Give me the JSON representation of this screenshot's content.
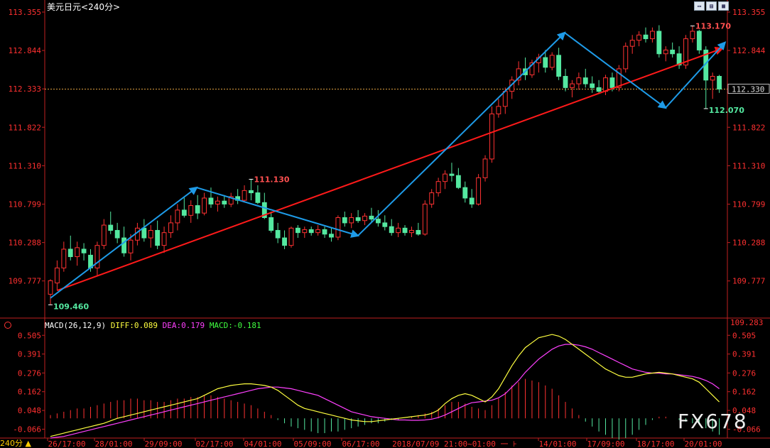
{
  "header": {
    "title": "美元日元",
    "timeframe": "<240分>"
  },
  "toolbar": {
    "icons": [
      "chart-type-icon",
      "indicator-icon",
      "expand-icon"
    ],
    "labels": [
      "▭",
      "▤",
      "▦"
    ]
  },
  "period_button": "240分 ▲",
  "macd_legend": {
    "name": "MACD(26,12,9)",
    "diff": "DIFF:0.089",
    "dea": "DEA:0.179",
    "macd": "MACD:-0.181"
  },
  "watermark": "FX678",
  "footer_center": "2018/07/09 21:00~01:00 一 ⊦",
  "colors": {
    "up": "#ff3232",
    "down": "#54e8a0",
    "trend_arrow": "#1e9be8",
    "trend_line": "#ff1a1a",
    "diff": "#ffff40",
    "dea": "#ff40ff",
    "axis": "#c02020",
    "label_axis": "#ff3030"
  },
  "chart_data": {
    "type": "candlestick",
    "price_axis": {
      "ticks": [
        "113.355",
        "112.844",
        "112.333",
        "111.822",
        "111.310",
        "110.799",
        "110.288",
        "109.777"
      ],
      "min": 109.283,
      "max": 113.355,
      "bottom_label": "109.283",
      "current": "112.330"
    },
    "macd_axis": {
      "ticks": [
        "0.505",
        "0.391",
        "0.276",
        "0.162",
        "0.048",
        "-0.066"
      ],
      "min": -0.12,
      "max": 0.545
    },
    "x_labels": [
      "26/17:00",
      "28/01:00",
      "29/09:00",
      "02/17:00",
      "04/01:00",
      "05/09:00",
      "06/17:00",
      "14/01:00",
      "17/09:00",
      "18/17:00",
      "20/01:00"
    ],
    "annotations": [
      {
        "label": "109.460",
        "value": 109.46,
        "kind": "low"
      },
      {
        "label": "111.130",
        "value": 111.13,
        "kind": "high"
      },
      {
        "label": "113.170",
        "value": 113.17,
        "kind": "high"
      },
      {
        "label": "112.070",
        "value": 112.07,
        "kind": "low"
      }
    ],
    "candles": [
      [
        109.6,
        109.8,
        109.46,
        109.78
      ],
      [
        109.75,
        110.05,
        109.65,
        109.95
      ],
      [
        109.95,
        110.3,
        109.9,
        110.2
      ],
      [
        110.2,
        110.38,
        110.05,
        110.1
      ],
      [
        110.1,
        110.3,
        109.98,
        110.22
      ],
      [
        110.2,
        110.28,
        110.05,
        110.15
      ],
      [
        110.12,
        110.2,
        109.9,
        109.95
      ],
      [
        109.95,
        110.3,
        109.85,
        110.25
      ],
      [
        110.25,
        110.6,
        110.2,
        110.52
      ],
      [
        110.52,
        110.7,
        110.4,
        110.45
      ],
      [
        110.45,
        110.55,
        110.28,
        110.35
      ],
      [
        110.35,
        110.5,
        110.1,
        110.15
      ],
      [
        110.15,
        110.4,
        110.05,
        110.32
      ],
      [
        110.32,
        110.55,
        110.25,
        110.48
      ],
      [
        110.48,
        110.6,
        110.3,
        110.35
      ],
      [
        110.35,
        110.52,
        110.22,
        110.45
      ],
      [
        110.45,
        110.58,
        110.2,
        110.25
      ],
      [
        110.25,
        110.5,
        110.15,
        110.42
      ],
      [
        110.42,
        110.65,
        110.35,
        110.55
      ],
      [
        110.55,
        110.8,
        110.45,
        110.72
      ],
      [
        110.72,
        110.9,
        110.62,
        110.65
      ],
      [
        110.65,
        110.85,
        110.55,
        110.78
      ],
      [
        110.78,
        110.92,
        110.6,
        110.68
      ],
      [
        110.68,
        110.95,
        110.65,
        110.88
      ],
      [
        110.88,
        111.02,
        110.75,
        110.8
      ],
      [
        110.8,
        110.9,
        110.7,
        110.84
      ],
      [
        110.84,
        110.92,
        110.75,
        110.8
      ],
      [
        110.8,
        110.95,
        110.76,
        110.9
      ],
      [
        110.9,
        111.0,
        110.8,
        110.85
      ],
      [
        110.85,
        111.05,
        110.82,
        110.98
      ],
      [
        110.98,
        111.13,
        110.85,
        110.95
      ],
      [
        110.95,
        111.05,
        110.8,
        110.82
      ],
      [
        110.82,
        110.95,
        110.6,
        110.62
      ],
      [
        110.62,
        110.7,
        110.42,
        110.45
      ],
      [
        110.45,
        110.55,
        110.28,
        110.35
      ],
      [
        110.35,
        110.45,
        110.2,
        110.25
      ],
      [
        110.25,
        110.5,
        110.22,
        110.48
      ],
      [
        110.48,
        110.52,
        110.35,
        110.42
      ],
      [
        110.42,
        110.5,
        110.35,
        110.46
      ],
      [
        110.46,
        110.5,
        110.38,
        110.42
      ],
      [
        110.42,
        110.52,
        110.38,
        110.46
      ],
      [
        110.46,
        110.5,
        110.35,
        110.4
      ],
      [
        110.4,
        110.48,
        110.3,
        110.36
      ],
      [
        110.36,
        110.65,
        110.32,
        110.62
      ],
      [
        110.62,
        110.7,
        110.5,
        110.55
      ],
      [
        110.55,
        110.68,
        110.48,
        110.62
      ],
      [
        110.62,
        110.72,
        110.55,
        110.58
      ],
      [
        110.58,
        110.68,
        110.52,
        110.64
      ],
      [
        110.64,
        110.75,
        110.55,
        110.6
      ],
      [
        110.6,
        110.72,
        110.5,
        110.55
      ],
      [
        110.55,
        110.65,
        110.45,
        110.5
      ],
      [
        110.5,
        110.6,
        110.38,
        110.42
      ],
      [
        110.42,
        110.55,
        110.36,
        110.48
      ],
      [
        110.48,
        110.52,
        110.38,
        110.42
      ],
      [
        110.42,
        110.5,
        110.36,
        110.45
      ],
      [
        110.45,
        110.55,
        110.38,
        110.4
      ],
      [
        110.4,
        110.85,
        110.38,
        110.8
      ],
      [
        110.8,
        111.0,
        110.75,
        110.95
      ],
      [
        110.95,
        111.15,
        110.9,
        111.1
      ],
      [
        111.1,
        111.25,
        111.0,
        111.2
      ],
      [
        111.2,
        111.35,
        111.1,
        111.18
      ],
      [
        111.18,
        111.28,
        111.0,
        111.02
      ],
      [
        111.02,
        111.1,
        110.82,
        110.88
      ],
      [
        110.88,
        111.0,
        110.75,
        110.8
      ],
      [
        110.8,
        111.2,
        110.78,
        111.15
      ],
      [
        111.15,
        111.45,
        111.1,
        111.4
      ],
      [
        111.4,
        112.1,
        111.35,
        112.0
      ],
      [
        112.0,
        112.2,
        111.95,
        112.1
      ],
      [
        112.1,
        112.35,
        112.0,
        112.3
      ],
      [
        112.3,
        112.5,
        112.2,
        112.45
      ],
      [
        112.45,
        112.7,
        112.38,
        112.6
      ],
      [
        112.6,
        112.75,
        112.45,
        112.52
      ],
      [
        112.52,
        112.72,
        112.48,
        112.68
      ],
      [
        112.68,
        112.8,
        112.55,
        112.75
      ],
      [
        112.75,
        112.85,
        112.55,
        112.62
      ],
      [
        112.62,
        112.82,
        112.58,
        112.78
      ],
      [
        112.78,
        112.88,
        112.45,
        112.5
      ],
      [
        112.5,
        112.6,
        112.3,
        112.35
      ],
      [
        112.35,
        112.45,
        112.22,
        112.4
      ],
      [
        112.4,
        112.55,
        112.32,
        112.48
      ],
      [
        112.48,
        112.6,
        112.35,
        112.4
      ],
      [
        112.4,
        112.5,
        112.28,
        112.35
      ],
      [
        112.35,
        112.45,
        112.28,
        112.3
      ],
      [
        112.3,
        112.52,
        112.25,
        112.48
      ],
      [
        112.48,
        112.55,
        112.3,
        112.35
      ],
      [
        112.35,
        112.65,
        112.3,
        112.6
      ],
      [
        112.6,
        112.95,
        112.55,
        112.9
      ],
      [
        112.9,
        113.05,
        112.8,
        112.98
      ],
      [
        112.98,
        113.1,
        112.9,
        113.05
      ],
      [
        113.05,
        113.15,
        112.95,
        113.0
      ],
      [
        113.0,
        113.15,
        112.95,
        113.1
      ],
      [
        113.1,
        113.18,
        112.75,
        112.8
      ],
      [
        112.8,
        112.9,
        112.7,
        112.85
      ],
      [
        112.85,
        112.95,
        112.75,
        112.8
      ],
      [
        112.8,
        112.9,
        112.6,
        112.65
      ],
      [
        112.65,
        113.05,
        112.6,
        113.0
      ],
      [
        113.0,
        113.17,
        112.95,
        113.1
      ],
      [
        113.1,
        113.12,
        112.8,
        112.85
      ],
      [
        112.85,
        112.9,
        112.07,
        112.45
      ],
      [
        112.45,
        112.55,
        112.2,
        112.5
      ],
      [
        112.5,
        112.52,
        112.28,
        112.33
      ]
    ],
    "macd": {
      "diff": [
        -0.11,
        -0.1,
        -0.09,
        -0.08,
        -0.07,
        -0.06,
        -0.05,
        -0.04,
        -0.03,
        -0.015,
        0.0,
        0.01,
        0.02,
        0.03,
        0.04,
        0.05,
        0.06,
        0.07,
        0.08,
        0.09,
        0.1,
        0.11,
        0.12,
        0.14,
        0.16,
        0.18,
        0.19,
        0.2,
        0.205,
        0.21,
        0.21,
        0.205,
        0.2,
        0.19,
        0.17,
        0.14,
        0.11,
        0.08,
        0.06,
        0.05,
        0.04,
        0.03,
        0.02,
        0.01,
        0.0,
        -0.01,
        -0.015,
        -0.02,
        -0.02,
        -0.015,
        -0.01,
        -0.005,
        0.0,
        0.005,
        0.01,
        0.015,
        0.02,
        0.03,
        0.05,
        0.09,
        0.12,
        0.14,
        0.15,
        0.14,
        0.12,
        0.1,
        0.13,
        0.18,
        0.25,
        0.32,
        0.38,
        0.43,
        0.46,
        0.49,
        0.5,
        0.51,
        0.5,
        0.48,
        0.45,
        0.42,
        0.39,
        0.36,
        0.33,
        0.3,
        0.28,
        0.26,
        0.25,
        0.25,
        0.26,
        0.27,
        0.275,
        0.28,
        0.275,
        0.27,
        0.26,
        0.25,
        0.24,
        0.22,
        0.18,
        0.14,
        0.1
      ],
      "dea": [
        -0.12,
        -0.115,
        -0.11,
        -0.1,
        -0.09,
        -0.08,
        -0.07,
        -0.06,
        -0.05,
        -0.04,
        -0.03,
        -0.02,
        -0.01,
        0.0,
        0.01,
        0.02,
        0.03,
        0.04,
        0.05,
        0.06,
        0.07,
        0.08,
        0.09,
        0.1,
        0.11,
        0.12,
        0.13,
        0.14,
        0.15,
        0.16,
        0.17,
        0.18,
        0.185,
        0.19,
        0.19,
        0.185,
        0.18,
        0.17,
        0.16,
        0.15,
        0.14,
        0.12,
        0.1,
        0.08,
        0.06,
        0.04,
        0.03,
        0.02,
        0.01,
        0.005,
        0.0,
        -0.005,
        -0.01,
        -0.01,
        -0.012,
        -0.012,
        -0.01,
        -0.005,
        0.005,
        0.02,
        0.04,
        0.06,
        0.08,
        0.095,
        0.1,
        0.105,
        0.11,
        0.125,
        0.15,
        0.19,
        0.23,
        0.28,
        0.32,
        0.36,
        0.39,
        0.42,
        0.44,
        0.45,
        0.45,
        0.445,
        0.435,
        0.42,
        0.4,
        0.38,
        0.36,
        0.34,
        0.32,
        0.3,
        0.29,
        0.28,
        0.275,
        0.275,
        0.27,
        0.27,
        0.265,
        0.26,
        0.255,
        0.245,
        0.23,
        0.21,
        0.18
      ],
      "hist": [
        0.02,
        0.03,
        0.04,
        0.05,
        0.06,
        0.06,
        0.07,
        0.08,
        0.09,
        0.1,
        0.11,
        0.11,
        0.12,
        0.12,
        0.11,
        0.11,
        0.1,
        0.1,
        0.11,
        0.12,
        0.12,
        0.13,
        0.13,
        0.14,
        0.14,
        0.13,
        0.12,
        0.11,
        0.1,
        0.09,
        0.08,
        0.06,
        0.04,
        0.02,
        -0.01,
        -0.03,
        -0.05,
        -0.06,
        -0.07,
        -0.08,
        -0.09,
        -0.09,
        -0.08,
        -0.08,
        -0.07,
        -0.06,
        -0.05,
        -0.04,
        -0.03,
        -0.03,
        -0.02,
        -0.01,
        -0.01,
        0.0,
        0.01,
        0.02,
        0.03,
        0.04,
        0.06,
        0.08,
        0.1,
        0.1,
        0.09,
        0.07,
        0.06,
        0.05,
        0.08,
        0.12,
        0.16,
        0.2,
        0.22,
        0.24,
        0.23,
        0.22,
        0.2,
        0.18,
        0.14,
        0.1,
        0.06,
        0.02,
        -0.02,
        -0.05,
        -0.08,
        -0.1,
        -0.12,
        -0.13,
        -0.12,
        -0.1,
        -0.07,
        -0.04,
        -0.01,
        0.01,
        0.01,
        0.0,
        -0.01,
        -0.02,
        -0.03,
        -0.04,
        -0.06,
        -0.08,
        -0.1
      ]
    }
  }
}
